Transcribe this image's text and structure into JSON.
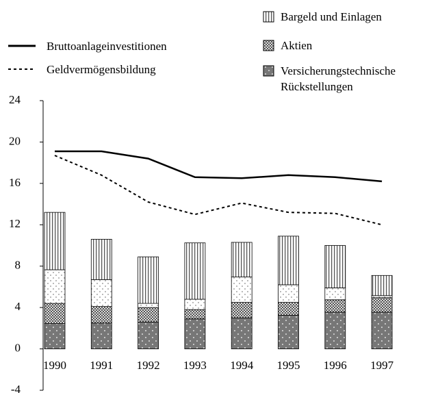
{
  "chart_data": {
    "type": "stacked_bar_line",
    "categories": [
      "1990",
      "1991",
      "1992",
      "1993",
      "1994",
      "1995",
      "1996",
      "1997"
    ],
    "series": [
      {
        "name": "Versicherungstechnische Rückstellungen",
        "values": [
          2.45,
          2.5,
          2.6,
          2.9,
          3.0,
          3.25,
          3.55,
          3.55
        ]
      },
      {
        "name": "Aktien",
        "values": [
          1.95,
          1.6,
          1.4,
          0.9,
          1.5,
          1.25,
          1.2,
          1.4
        ]
      },
      {
        "values": [
          3.25,
          2.6,
          0.4,
          1.0,
          2.45,
          1.7,
          1.15,
          0.2
        ]
      },
      {
        "name": "Bargeld und Einlagen",
        "values": [
          5.55,
          3.9,
          4.5,
          5.45,
          3.35,
          4.7,
          4.1,
          1.95
        ]
      }
    ],
    "lines": [
      {
        "name": "Bruttoanlageinvestitionen",
        "style": "solid",
        "values": [
          19.1,
          19.1,
          18.4,
          16.6,
          16.5,
          16.8,
          16.6,
          16.2
        ]
      },
      {
        "name": "Geldvermögensbildung",
        "style": "dashed",
        "values": [
          18.7,
          16.8,
          14.2,
          13.0,
          14.1,
          13.2,
          13.1,
          12.0
        ]
      }
    ],
    "ylim": [
      -4,
      24
    ],
    "yticks": [
      -4,
      0,
      4,
      8,
      12,
      16,
      20,
      24
    ]
  }
}
